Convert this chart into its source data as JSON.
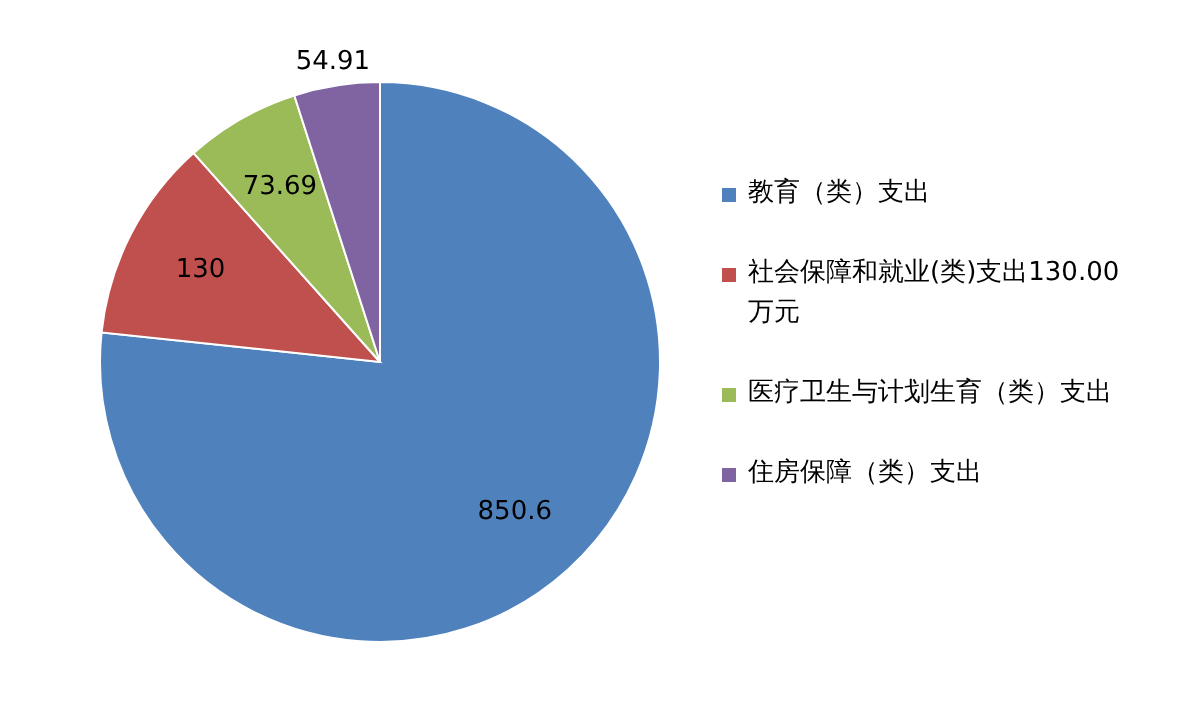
{
  "chart_data": {
    "type": "pie",
    "categories": [
      "教育（类）支出",
      "社会保障和就业(类)支出130.00万元",
      "医疗卫生与计划生育（类）支出",
      "住房保障（类）支出"
    ],
    "values": [
      850.6,
      130,
      73.69,
      54.91
    ],
    "colors": [
      "#4f81bd",
      "#c0504d",
      "#9bbb59",
      "#8064a2"
    ],
    "data_labels": true,
    "legend": "right"
  }
}
